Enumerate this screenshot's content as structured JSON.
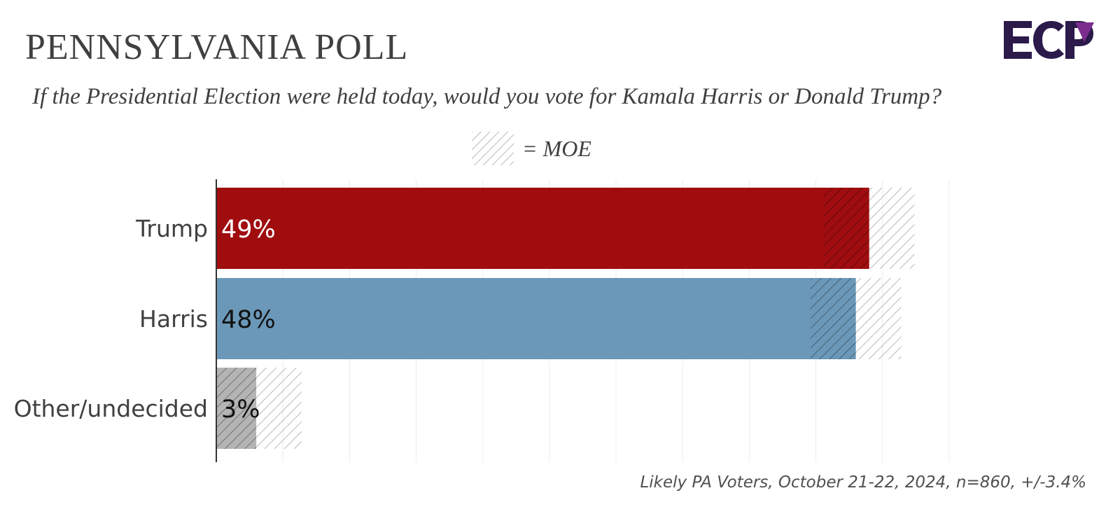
{
  "header": {
    "title": "PENNSYLVANIA POLL",
    "subtitle": "If the Presidential Election were held today, would you vote for Kamala Harris or Donald Trump?"
  },
  "logo": {
    "text": "ECP",
    "color_primary": "#2b1a4a",
    "color_accent": "#7b2d8e"
  },
  "legend": {
    "label": "= MOE"
  },
  "footnote": "Likely PA Voters, October 21-22, 2024, n=860, +/-3.4%",
  "chart_data": {
    "type": "bar",
    "orientation": "horizontal",
    "categories": [
      "Trump",
      "Harris",
      "Other/undecided"
    ],
    "values": [
      49,
      48,
      3
    ],
    "value_labels": [
      "49%",
      "48%",
      "3%"
    ],
    "moe": 3.4,
    "colors": [
      "#a00d0f",
      "#6b98b8",
      "#b4b4b4"
    ],
    "label_colors": [
      "#ffffff",
      "#111111",
      "#111111"
    ],
    "xlim": [
      0,
      58
    ],
    "grid": true
  }
}
